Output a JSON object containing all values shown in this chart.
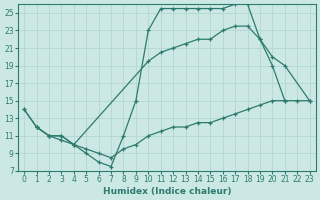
{
  "xlabel": "Humidex (Indice chaleur)",
  "bg_color": "#cce8e4",
  "grid_color": "#b8d8d4",
  "line_color": "#2d7b6e",
  "xlim": [
    -0.5,
    23.5
  ],
  "ylim": [
    7,
    26
  ],
  "yticks": [
    7,
    9,
    11,
    13,
    15,
    17,
    19,
    21,
    23,
    25
  ],
  "xticks": [
    0,
    1,
    2,
    3,
    4,
    5,
    6,
    7,
    8,
    9,
    10,
    11,
    12,
    13,
    14,
    15,
    16,
    17,
    18,
    19,
    20,
    21,
    22,
    23
  ],
  "line1_x": [
    0,
    1,
    2,
    3,
    4,
    5,
    6,
    7,
    8,
    9,
    10,
    11,
    12,
    13,
    14,
    15,
    16,
    17,
    18,
    19,
    20,
    21
  ],
  "line1_y": [
    14,
    12,
    11,
    11,
    10,
    9,
    8,
    7.5,
    11,
    15,
    23,
    25.5,
    25.5,
    25.5,
    25.5,
    25.5,
    25.5,
    26,
    26,
    22,
    19,
    15
  ],
  "line2_x": [
    0,
    1,
    2,
    3,
    4,
    10,
    11,
    12,
    13,
    14,
    15,
    16,
    17,
    18,
    19,
    20,
    21,
    23
  ],
  "line2_y": [
    14,
    12,
    11,
    10.5,
    10,
    19.5,
    20.5,
    21,
    21.5,
    22,
    22,
    23,
    23.5,
    23.5,
    22,
    20,
    19,
    15
  ],
  "line3_x": [
    1,
    2,
    3,
    4,
    5,
    6,
    7,
    8,
    9,
    10,
    11,
    12,
    13,
    14,
    15,
    16,
    17,
    18,
    19,
    20,
    21,
    22,
    23
  ],
  "line3_y": [
    12,
    11,
    11,
    10,
    9.5,
    9,
    8.5,
    9.5,
    10,
    11,
    11.5,
    12,
    12,
    12.5,
    12.5,
    13,
    13.5,
    14,
    14.5,
    15,
    15,
    15,
    15
  ]
}
